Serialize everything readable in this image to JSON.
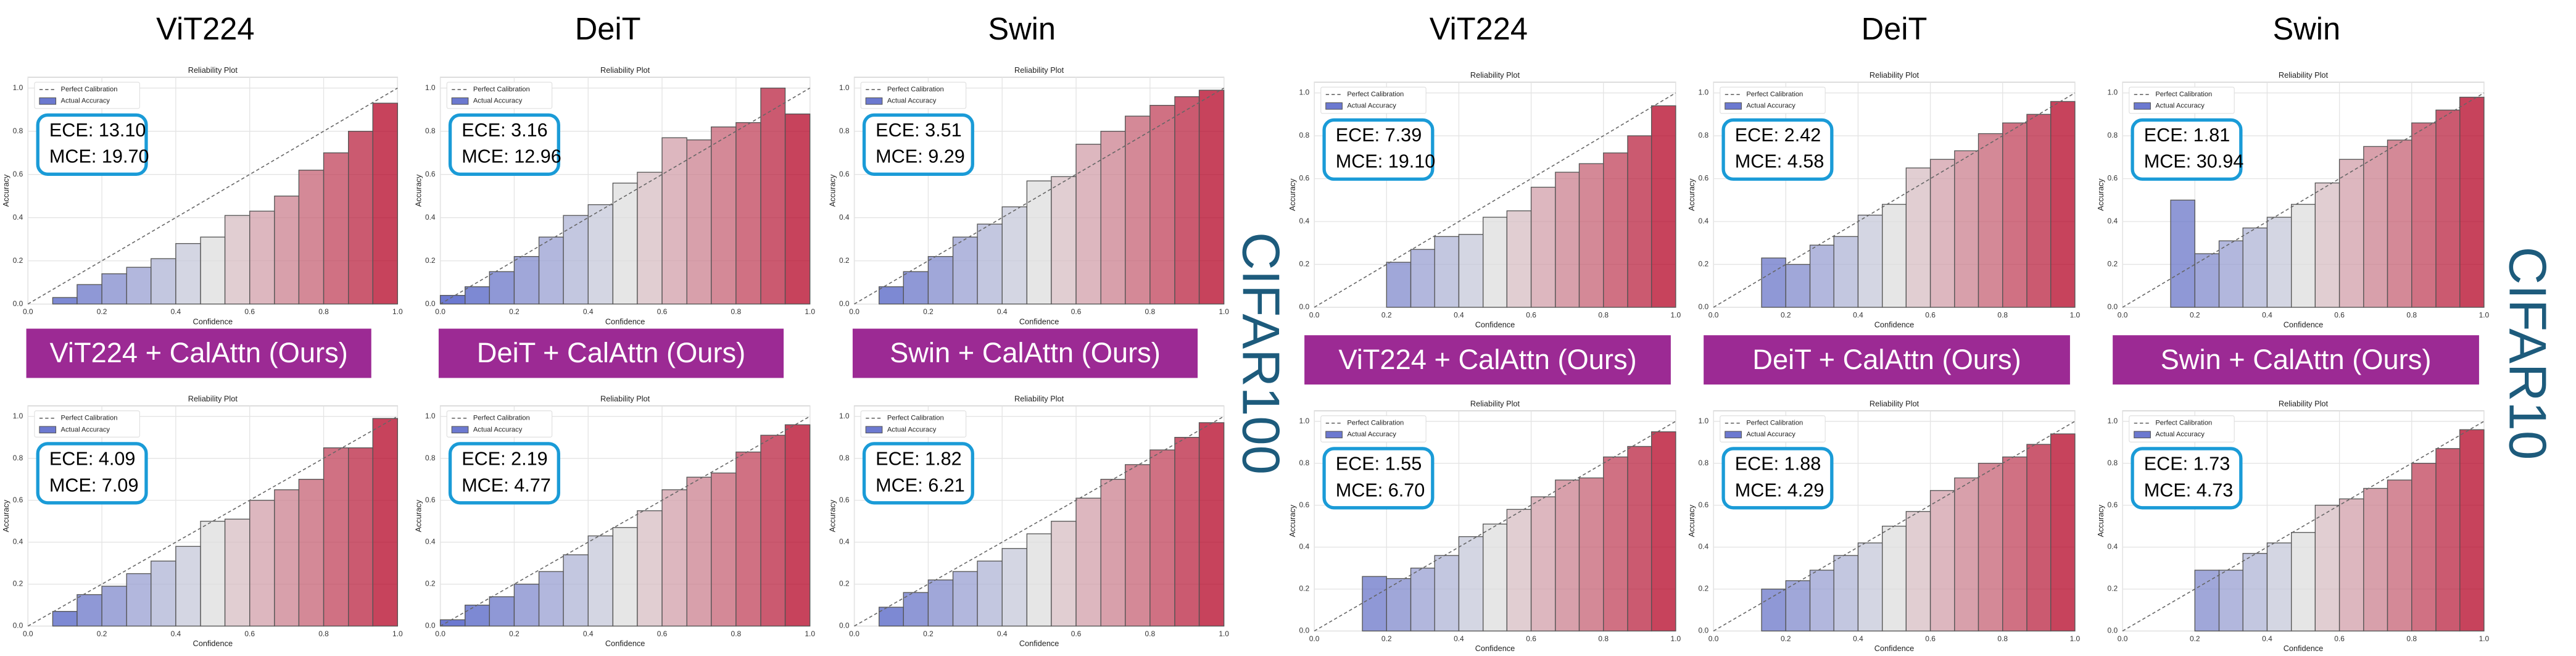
{
  "figure": {
    "column_titles": [
      "ViT224",
      "DeiT",
      "Swin",
      "ViT224",
      "DeiT",
      "Swin"
    ],
    "banners": [
      "ViT224 + CalAttn (Ours)",
      "DeiT + CalAttn (Ours)",
      "Swin + CalAttn (Ours)",
      "ViT224 + CalAttn (Ours)",
      "DeiT + CalAttn (Ours)",
      "Swin + CalAttn (Ours)"
    ],
    "side_labels": [
      "CIFAR100",
      "CIFAR10"
    ]
  },
  "chart_data": [
    {
      "type": "histogram",
      "title": "Reliability Plot",
      "xlabel": "Confidence",
      "ylabel": "Accuracy",
      "legend": [
        "Perfect Calibration",
        "Actual Accuracy"
      ],
      "legend_loc": "upper left",
      "colormap": "coolwarm",
      "grid": true,
      "bins": [
        0,
        0.067,
        0.133,
        0.2,
        0.267,
        0.333,
        0.4,
        0.467,
        0.533,
        0.6,
        0.667,
        0.733,
        0.8,
        0.867,
        0.933,
        1
      ],
      "values": [
        null,
        0.03,
        0.09,
        0.14,
        0.17,
        0.21,
        0.28,
        0.31,
        0.41,
        0.43,
        0.5,
        0.62,
        0.7,
        0.8,
        0.93
      ],
      "annotations": [
        "ECE: 13.10",
        "MCE: 19.70"
      ],
      "xlim": [
        0,
        1
      ],
      "ylim": [
        0,
        1.05
      ],
      "xticks": [
        {
          "value": 0,
          "label": "0.0"
        },
        0.2,
        0.4,
        0.6,
        0.8,
        {
          "value": 1,
          "label": "1.0"
        }
      ],
      "yticks": [
        {
          "value": 0,
          "label": "0.0"
        },
        0.2,
        0.4,
        0.6,
        0.8,
        {
          "value": 1,
          "label": "1.0"
        }
      ]
    },
    {
      "type": "histogram",
      "title": "Reliability Plot",
      "xlabel": "Confidence",
      "ylabel": "Accuracy",
      "legend": [
        "Perfect Calibration",
        "Actual Accuracy"
      ],
      "legend_loc": "upper left",
      "colormap": "coolwarm",
      "grid": true,
      "bins": [
        0,
        0.067,
        0.133,
        0.2,
        0.267,
        0.333,
        0.4,
        0.467,
        0.533,
        0.6,
        0.667,
        0.733,
        0.8,
        0.867,
        0.933,
        1
      ],
      "values": [
        0.04,
        0.08,
        0.15,
        0.22,
        0.31,
        0.41,
        0.46,
        0.56,
        0.61,
        0.77,
        0.76,
        0.82,
        0.84,
        1.0,
        0.88
      ],
      "annotations": [
        "ECE: 3.16",
        "MCE: 12.96"
      ],
      "xlim": [
        0,
        1
      ],
      "ylim": [
        0,
        1.05
      ],
      "xticks": [
        {
          "value": 0,
          "label": "0.0"
        },
        0.2,
        0.4,
        0.6,
        0.8,
        {
          "value": 1,
          "label": "1.0"
        }
      ],
      "yticks": [
        {
          "value": 0,
          "label": "0.0"
        },
        0.2,
        0.4,
        0.6,
        0.8,
        {
          "value": 1,
          "label": "1.0"
        }
      ]
    },
    {
      "type": "histogram",
      "title": "Reliability Plot",
      "xlabel": "Confidence",
      "ylabel": "Accuracy",
      "legend": [
        "Perfect Calibration",
        "Actual Accuracy"
      ],
      "legend_loc": "upper left",
      "colormap": "coolwarm",
      "grid": true,
      "bins": [
        0,
        0.067,
        0.133,
        0.2,
        0.267,
        0.333,
        0.4,
        0.467,
        0.533,
        0.6,
        0.667,
        0.733,
        0.8,
        0.867,
        0.933,
        1
      ],
      "values": [
        null,
        0.08,
        0.15,
        0.22,
        0.31,
        0.37,
        0.45,
        0.57,
        0.59,
        0.74,
        0.8,
        0.87,
        0.92,
        0.96,
        0.99
      ],
      "annotations": [
        "ECE: 3.51",
        "MCE: 9.29"
      ],
      "xlim": [
        0,
        1
      ],
      "ylim": [
        0,
        1.05
      ],
      "xticks": [
        {
          "value": 0,
          "label": "0.0"
        },
        0.2,
        0.4,
        0.6,
        0.8,
        {
          "value": 1,
          "label": "1.0"
        }
      ],
      "yticks": [
        {
          "value": 0,
          "label": "0.0"
        },
        0.2,
        0.4,
        0.6,
        0.8,
        {
          "value": 1,
          "label": "1.0"
        }
      ]
    },
    {
      "type": "histogram",
      "title": "Reliability Plot",
      "xlabel": "Confidence",
      "ylabel": "Accuracy",
      "legend": [
        "Perfect Calibration",
        "Actual Accuracy"
      ],
      "legend_loc": "upper left",
      "colormap": "coolwarm",
      "grid": true,
      "bins": [
        0,
        0.067,
        0.133,
        0.2,
        0.267,
        0.333,
        0.4,
        0.467,
        0.533,
        0.6,
        0.667,
        0.733,
        0.8,
        0.867,
        0.933,
        1
      ],
      "values": [
        null,
        null,
        null,
        0.21,
        0.27,
        0.33,
        0.34,
        0.42,
        0.45,
        0.56,
        0.63,
        0.67,
        0.72,
        0.8,
        0.94
      ],
      "annotations": [
        "ECE: 7.39",
        "MCE: 19.10"
      ],
      "xlim": [
        0,
        1
      ],
      "ylim": [
        0,
        1.05
      ],
      "xticks": [
        {
          "value": 0,
          "label": "0.0"
        },
        0.2,
        0.4,
        0.6,
        0.8,
        {
          "value": 1,
          "label": "1.0"
        }
      ],
      "yticks": [
        {
          "value": 0,
          "label": "0.0"
        },
        0.2,
        0.4,
        0.6,
        0.8,
        {
          "value": 1,
          "label": "1.0"
        }
      ]
    },
    {
      "type": "histogram",
      "title": "Reliability Plot",
      "xlabel": "Confidence",
      "ylabel": "Accuracy",
      "legend": [
        "Perfect Calibration",
        "Actual Accuracy"
      ],
      "legend_loc": "upper left",
      "colormap": "coolwarm",
      "grid": true,
      "bins": [
        0,
        0.067,
        0.133,
        0.2,
        0.267,
        0.333,
        0.4,
        0.467,
        0.533,
        0.6,
        0.667,
        0.733,
        0.8,
        0.867,
        0.933,
        1
      ],
      "values": [
        null,
        null,
        0.23,
        0.2,
        0.29,
        0.33,
        0.43,
        0.48,
        0.65,
        0.69,
        0.73,
        0.81,
        0.86,
        0.9,
        0.96
      ],
      "annotations": [
        "ECE: 2.42",
        "MCE: 4.58"
      ],
      "xlim": [
        0,
        1
      ],
      "ylim": [
        0,
        1.05
      ],
      "xticks": [
        {
          "value": 0,
          "label": "0.0"
        },
        0.2,
        0.4,
        0.6,
        0.8,
        {
          "value": 1,
          "label": "1.0"
        }
      ],
      "yticks": [
        {
          "value": 0,
          "label": "0.0"
        },
        0.2,
        0.4,
        0.6,
        0.8,
        {
          "value": 1,
          "label": "1.0"
        }
      ]
    },
    {
      "type": "histogram",
      "title": "Reliability Plot",
      "xlabel": "Confidence",
      "ylabel": "Accuracy",
      "legend": [
        "Perfect Calibration",
        "Actual Accuracy"
      ],
      "legend_loc": "upper left",
      "colormap": "coolwarm",
      "grid": true,
      "bins": [
        0,
        0.067,
        0.133,
        0.2,
        0.267,
        0.333,
        0.4,
        0.467,
        0.533,
        0.6,
        0.667,
        0.733,
        0.8,
        0.867,
        0.933,
        1
      ],
      "values": [
        null,
        null,
        0.5,
        0.25,
        0.31,
        0.37,
        0.42,
        0.48,
        0.58,
        0.69,
        0.75,
        0.78,
        0.86,
        0.92,
        0.98
      ],
      "annotations": [
        "ECE: 1.81",
        "MCE: 30.94"
      ],
      "xlim": [
        0,
        1
      ],
      "ylim": [
        0,
        1.05
      ],
      "xticks": [
        {
          "value": 0,
          "label": "0.0"
        },
        0.2,
        0.4,
        0.6,
        0.8,
        {
          "value": 1,
          "label": "1.0"
        }
      ],
      "yticks": [
        {
          "value": 0,
          "label": "0.0"
        },
        0.2,
        0.4,
        0.6,
        0.8,
        {
          "value": 1,
          "label": "1.0"
        }
      ]
    },
    {
      "type": "histogram",
      "title": "Reliability Plot",
      "xlabel": "Confidence",
      "ylabel": "Accuracy",
      "legend": [
        "Perfect Calibration",
        "Actual Accuracy"
      ],
      "legend_loc": "upper left",
      "colormap": "coolwarm",
      "grid": true,
      "bins": [
        0,
        0.067,
        0.133,
        0.2,
        0.267,
        0.333,
        0.4,
        0.467,
        0.533,
        0.6,
        0.667,
        0.733,
        0.8,
        0.867,
        0.933,
        1
      ],
      "values": [
        null,
        0.07,
        0.15,
        0.19,
        0.25,
        0.31,
        0.38,
        0.5,
        0.51,
        0.6,
        0.65,
        0.7,
        0.85,
        0.85,
        0.99
      ],
      "annotations": [
        "ECE: 4.09",
        "MCE: 7.09"
      ],
      "xlim": [
        0,
        1
      ],
      "ylim": [
        0,
        1.05
      ],
      "xticks": [
        {
          "value": 0,
          "label": "0.0"
        },
        0.2,
        0.4,
        0.6,
        0.8,
        {
          "value": 1,
          "label": "1.0"
        }
      ],
      "yticks": [
        {
          "value": 0,
          "label": "0.0"
        },
        0.2,
        0.4,
        0.6,
        0.8,
        {
          "value": 1,
          "label": "1.0"
        }
      ]
    },
    {
      "type": "histogram",
      "title": "Reliability Plot",
      "xlabel": "Confidence",
      "ylabel": "Accuracy",
      "legend": [
        "Perfect Calibration",
        "Actual Accuracy"
      ],
      "legend_loc": "upper left",
      "colormap": "coolwarm",
      "grid": true,
      "bins": [
        0,
        0.067,
        0.133,
        0.2,
        0.267,
        0.333,
        0.4,
        0.467,
        0.533,
        0.6,
        0.667,
        0.733,
        0.8,
        0.867,
        0.933,
        1
      ],
      "values": [
        0.03,
        0.1,
        0.14,
        0.2,
        0.26,
        0.34,
        0.43,
        0.47,
        0.55,
        0.65,
        0.71,
        0.73,
        0.83,
        0.91,
        0.96
      ],
      "annotations": [
        "ECE: 2.19",
        "MCE: 4.77"
      ],
      "xlim": [
        0,
        1
      ],
      "ylim": [
        0,
        1.05
      ],
      "xticks": [
        {
          "value": 0,
          "label": "0.0"
        },
        0.2,
        0.4,
        0.6,
        0.8,
        {
          "value": 1,
          "label": "1.0"
        }
      ],
      "yticks": [
        {
          "value": 0,
          "label": "0.0"
        },
        0.2,
        0.4,
        0.6,
        0.8,
        {
          "value": 1,
          "label": "1.0"
        }
      ]
    },
    {
      "type": "histogram",
      "title": "Reliability Plot",
      "xlabel": "Confidence",
      "ylabel": "Accuracy",
      "legend": [
        "Perfect Calibration",
        "Actual Accuracy"
      ],
      "legend_loc": "upper left",
      "colormap": "coolwarm",
      "grid": true,
      "bins": [
        0,
        0.067,
        0.133,
        0.2,
        0.267,
        0.333,
        0.4,
        0.467,
        0.533,
        0.6,
        0.667,
        0.733,
        0.8,
        0.867,
        0.933,
        1
      ],
      "values": [
        null,
        0.09,
        0.16,
        0.22,
        0.26,
        0.31,
        0.37,
        0.44,
        0.5,
        0.61,
        0.7,
        0.77,
        0.84,
        0.9,
        0.97
      ],
      "annotations": [
        "ECE: 1.82",
        "MCE: 6.21"
      ],
      "xlim": [
        0,
        1
      ],
      "ylim": [
        0,
        1.05
      ],
      "xticks": [
        {
          "value": 0,
          "label": "0.0"
        },
        0.2,
        0.4,
        0.6,
        0.8,
        {
          "value": 1,
          "label": "1.0"
        }
      ],
      "yticks": [
        {
          "value": 0,
          "label": "0.0"
        },
        0.2,
        0.4,
        0.6,
        0.8,
        {
          "value": 1,
          "label": "1.0"
        }
      ]
    },
    {
      "type": "histogram",
      "title": "Reliability Plot",
      "xlabel": "Confidence",
      "ylabel": "Accuracy",
      "legend": [
        "Perfect Calibration",
        "Actual Accuracy"
      ],
      "legend_loc": "upper left",
      "colormap": "coolwarm",
      "grid": true,
      "bins": [
        0,
        0.067,
        0.133,
        0.2,
        0.267,
        0.333,
        0.4,
        0.467,
        0.533,
        0.6,
        0.667,
        0.733,
        0.8,
        0.867,
        0.933,
        1
      ],
      "values": [
        null,
        null,
        0.26,
        0.25,
        0.3,
        0.36,
        0.45,
        0.51,
        0.58,
        0.64,
        0.72,
        0.73,
        0.83,
        0.88,
        0.95
      ],
      "annotations": [
        "ECE: 1.55",
        "MCE: 6.70"
      ],
      "xlim": [
        0,
        1
      ],
      "ylim": [
        0,
        1.05
      ],
      "xticks": [
        {
          "value": 0,
          "label": "0.0"
        },
        0.2,
        0.4,
        0.6,
        0.8,
        {
          "value": 1,
          "label": "1.0"
        }
      ],
      "yticks": [
        {
          "value": 0,
          "label": "0.0"
        },
        0.2,
        0.4,
        0.6,
        0.8,
        {
          "value": 1,
          "label": "1.0"
        }
      ]
    },
    {
      "type": "histogram",
      "title": "Reliability Plot",
      "xlabel": "Confidence",
      "ylabel": "Accuracy",
      "legend": [
        "Perfect Calibration",
        "Actual Accuracy"
      ],
      "legend_loc": "upper left",
      "colormap": "coolwarm",
      "grid": true,
      "bins": [
        0,
        0.067,
        0.133,
        0.2,
        0.267,
        0.333,
        0.4,
        0.467,
        0.533,
        0.6,
        0.667,
        0.733,
        0.8,
        0.867,
        0.933,
        1
      ],
      "values": [
        null,
        null,
        0.2,
        0.24,
        0.29,
        0.36,
        0.42,
        0.5,
        0.57,
        0.67,
        0.73,
        0.8,
        0.83,
        0.89,
        0.94
      ],
      "annotations": [
        "ECE: 1.88",
        "MCE: 4.29"
      ],
      "xlim": [
        0,
        1
      ],
      "ylim": [
        0,
        1.05
      ],
      "xticks": [
        {
          "value": 0,
          "label": "0.0"
        },
        0.2,
        0.4,
        0.6,
        0.8,
        {
          "value": 1,
          "label": "1.0"
        }
      ],
      "yticks": [
        {
          "value": 0,
          "label": "0.0"
        },
        0.2,
        0.4,
        0.6,
        0.8,
        {
          "value": 1,
          "label": "1.0"
        }
      ]
    },
    {
      "type": "histogram",
      "title": "Reliability Plot",
      "xlabel": "Confidence",
      "ylabel": "Accuracy",
      "legend": [
        "Perfect Calibration",
        "Actual Accuracy"
      ],
      "legend_loc": "upper left",
      "colormap": "coolwarm",
      "grid": true,
      "bins": [
        0,
        0.067,
        0.133,
        0.2,
        0.267,
        0.333,
        0.4,
        0.467,
        0.533,
        0.6,
        0.667,
        0.733,
        0.8,
        0.867,
        0.933,
        1
      ],
      "values": [
        null,
        null,
        null,
        0.29,
        0.29,
        0.37,
        0.42,
        0.47,
        0.6,
        0.63,
        0.68,
        0.72,
        0.8,
        0.87,
        0.96
      ],
      "annotations": [
        "ECE: 1.73",
        "MCE: 4.73"
      ],
      "xlim": [
        0,
        1
      ],
      "ylim": [
        0,
        1.05
      ],
      "xticks": [
        {
          "value": 0,
          "label": "0.0"
        },
        0.2,
        0.4,
        0.6,
        0.8,
        {
          "value": 1,
          "label": "1.0"
        }
      ],
      "yticks": [
        {
          "value": 0,
          "label": "0.0"
        },
        0.2,
        0.4,
        0.6,
        0.8,
        {
          "value": 1,
          "label": "1.0"
        }
      ]
    }
  ]
}
